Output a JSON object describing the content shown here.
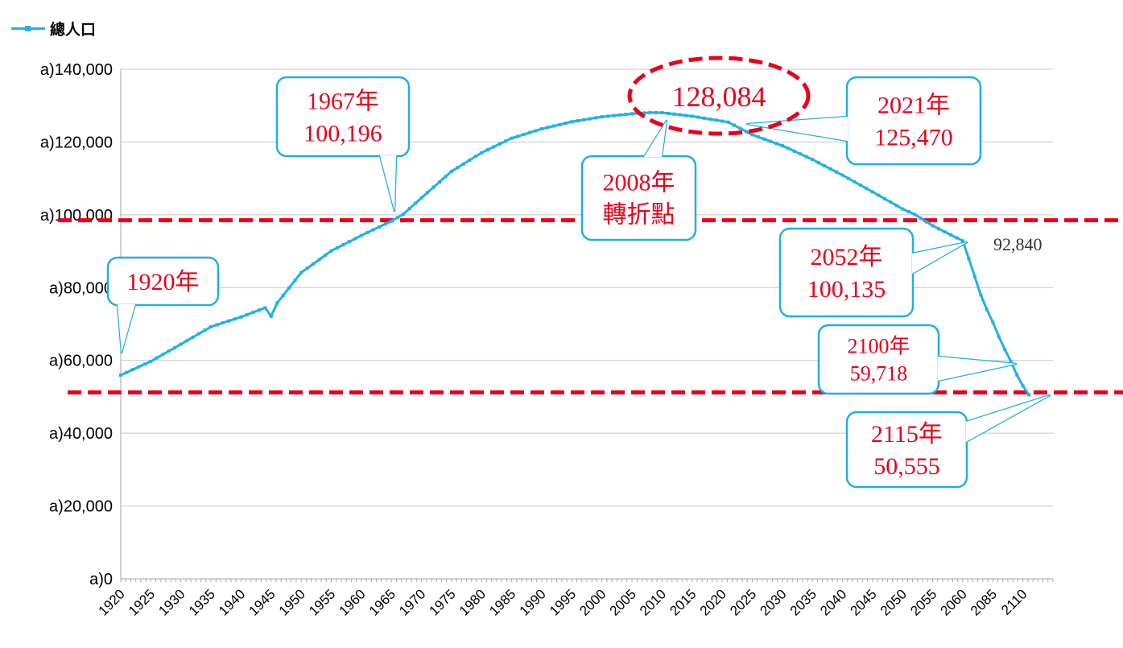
{
  "legend": {
    "label": "總人口",
    "color": "#1fb1e6"
  },
  "colors": {
    "series": "#1fb1e6",
    "callout_border": "#22aee2",
    "callout_text": "#e8001c",
    "reference_line": "#e8001c",
    "grid": "#c8c8c8"
  },
  "chart_data": {
    "type": "line",
    "title": "",
    "xlabel": "",
    "ylabel": "",
    "ylim": [
      0,
      140000
    ],
    "yticks": [
      "a)0",
      "a)20,000",
      "a)40,000",
      "a)60,000",
      "a)80,000",
      "a)100,000",
      "a)120,000",
      "a)140,000"
    ],
    "xticks": [
      "1920",
      "1925",
      "1930",
      "1935",
      "1940",
      "1945",
      "1950",
      "1955",
      "1960",
      "1965",
      "1970",
      "1975",
      "1980",
      "1985",
      "1990",
      "1995",
      "2000",
      "2005",
      "2010",
      "2015",
      "2020",
      "2025",
      "2030",
      "2035",
      "2040",
      "2045",
      "2050",
      "2055",
      "2060",
      "2085",
      "2110"
    ],
    "grid": "horizontal",
    "legend_position": "top-left",
    "series": [
      {
        "name": "總人口",
        "key_points": [
          {
            "year": 1920,
            "value": 55963
          },
          {
            "year": 1925,
            "value": 59737
          },
          {
            "year": 1930,
            "value": 64450
          },
          {
            "year": 1935,
            "value": 69254
          },
          {
            "year": 1940,
            "value": 71933
          },
          {
            "year": 1944,
            "value": 74433
          },
          {
            "year": 1945,
            "value": 72147
          },
          {
            "year": 1946,
            "value": 75750
          },
          {
            "year": 1950,
            "value": 84115
          },
          {
            "year": 1955,
            "value": 90077
          },
          {
            "year": 1960,
            "value": 94302
          },
          {
            "year": 1965,
            "value": 98275
          },
          {
            "year": 1967,
            "value": 100196
          },
          {
            "year": 1970,
            "value": 104665
          },
          {
            "year": 1975,
            "value": 111940
          },
          {
            "year": 1980,
            "value": 117060
          },
          {
            "year": 1985,
            "value": 121049
          },
          {
            "year": 1990,
            "value": 123611
          },
          {
            "year": 1995,
            "value": 125570
          },
          {
            "year": 2000,
            "value": 126926
          },
          {
            "year": 2005,
            "value": 127768
          },
          {
            "year": 2008,
            "value": 128084
          },
          {
            "year": 2010,
            "value": 128057
          },
          {
            "year": 2015,
            "value": 127095
          },
          {
            "year": 2021,
            "value": 125470
          },
          {
            "year": 2025,
            "value": 122000
          },
          {
            "year": 2030,
            "value": 119000
          },
          {
            "year": 2035,
            "value": 115200
          },
          {
            "year": 2040,
            "value": 110900
          },
          {
            "year": 2045,
            "value": 106300
          },
          {
            "year": 2050,
            "value": 101600
          },
          {
            "year": 2052,
            "value": 100135
          },
          {
            "year": 2055,
            "value": 97000
          },
          {
            "year": 2060,
            "value": 92840
          },
          {
            "year": 2065,
            "value": 88000
          },
          {
            "year": 2070,
            "value": 83000
          },
          {
            "year": 2075,
            "value": 78000
          },
          {
            "year": 2080,
            "value": 74000
          },
          {
            "year": 2085,
            "value": 70500
          },
          {
            "year": 2090,
            "value": 66500
          },
          {
            "year": 2095,
            "value": 63000
          },
          {
            "year": 2100,
            "value": 59718
          },
          {
            "year": 2105,
            "value": 56000
          },
          {
            "year": 2110,
            "value": 53000
          },
          {
            "year": 2115,
            "value": 50555
          }
        ]
      }
    ],
    "reference_lines": [
      {
        "value": 98500,
        "style": "dashed",
        "color": "#e8001c"
      },
      {
        "value": 51200,
        "style": "dashed",
        "color": "#e8001c"
      }
    ],
    "annotations": [
      {
        "id": "a1920",
        "lines": [
          "1920年"
        ],
        "year": 1920,
        "value": 55963
      },
      {
        "id": "a1967",
        "lines": [
          "1967年",
          "100,196"
        ],
        "year": 1967,
        "value": 100196
      },
      {
        "id": "a2008",
        "lines": [
          "2008年",
          "轉折點"
        ],
        "year": 2008,
        "value": 128084
      },
      {
        "id": "apeak",
        "lines": [
          "128,084"
        ],
        "year": 2008,
        "value": 128084
      },
      {
        "id": "a2021",
        "lines": [
          "2021年",
          "125,470"
        ],
        "year": 2021,
        "value": 125470
      },
      {
        "id": "a2052",
        "lines": [
          "2052年",
          "100,135"
        ],
        "year": 2052,
        "value": 100135
      },
      {
        "id": "a2060",
        "lines": [
          "92,840"
        ],
        "year": 2060,
        "value": 92840
      },
      {
        "id": "a2100",
        "lines": [
          "2100年",
          "59,718"
        ],
        "year": 2100,
        "value": 59718
      },
      {
        "id": "a2115",
        "lines": [
          "2115年",
          "50,555"
        ],
        "year": 2115,
        "value": 50555
      }
    ]
  }
}
